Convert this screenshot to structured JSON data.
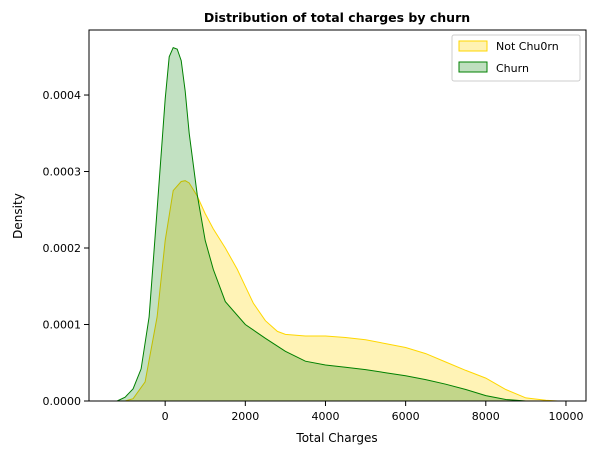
{
  "chart_data": {
    "type": "area",
    "title": "Distribution of total charges by churn",
    "xlabel": "Total Charges",
    "ylabel": "Density",
    "xlim": [
      -1900,
      10500
    ],
    "ylim": [
      0,
      0.000485
    ],
    "xticks": [
      0,
      2000,
      4000,
      6000,
      8000,
      10000
    ],
    "xtick_labels": [
      "0",
      "2000",
      "4000",
      "6000",
      "8000",
      "10000"
    ],
    "yticks": [
      0,
      0.0001,
      0.0002,
      0.0003,
      0.0004
    ],
    "ytick_labels": [
      "0.0000",
      "0.0001",
      "0.0002",
      "0.0003",
      "0.0004"
    ],
    "grid": false,
    "legend_position": "top-right",
    "series": [
      {
        "name": "Not Chu0rn",
        "fill": "#fff2b2",
        "stroke": "#ffd700",
        "x": [
          -1000,
          -800,
          -500,
          -200,
          0,
          200,
          400,
          500,
          600,
          800,
          1000,
          1200,
          1500,
          1800,
          2000,
          2200,
          2500,
          2800,
          3000,
          3500,
          4000,
          4500,
          5000,
          5500,
          6000,
          6500,
          7000,
          7500,
          8000,
          8500,
          9000,
          9500,
          9800
        ],
        "y": [
          0.0,
          3e-06,
          2.5e-05,
          0.00011,
          0.00021,
          0.000275,
          0.000287,
          0.000288,
          0.000285,
          0.000268,
          0.000245,
          0.000225,
          0.0002,
          0.000172,
          0.00015,
          0.000128,
          0.000105,
          9.1e-05,
          8.7e-05,
          8.5e-05,
          8.5e-05,
          8.3e-05,
          8e-05,
          7.5e-05,
          7e-05,
          6.2e-05,
          5.1e-05,
          4e-05,
          3e-05,
          1.5e-05,
          4e-06,
          1e-06,
          0.0
        ]
      },
      {
        "name": "Churn",
        "fill": "#bfdfbf",
        "stroke": "#008000",
        "x": [
          -1200,
          -1000,
          -800,
          -600,
          -400,
          -200,
          0,
          100,
          200,
          300,
          400,
          500,
          600,
          800,
          1000,
          1200,
          1500,
          2000,
          2500,
          3000,
          3500,
          4000,
          4500,
          5000,
          5500,
          6000,
          6500,
          7000,
          7500,
          8000,
          8500,
          9000
        ],
        "y": [
          0.0,
          5e-06,
          1.6e-05,
          4.2e-05,
          0.00011,
          0.00025,
          0.000395,
          0.00045,
          0.000462,
          0.00046,
          0.000445,
          0.000405,
          0.00035,
          0.00027,
          0.00021,
          0.000172,
          0.00013,
          0.0001,
          8.2e-05,
          6.5e-05,
          5.2e-05,
          4.7e-05,
          4.4e-05,
          4.1e-05,
          3.7e-05,
          3.3e-05,
          2.8e-05,
          2.2e-05,
          1.5e-05,
          7e-06,
          2e-06,
          0.0
        ]
      }
    ]
  }
}
